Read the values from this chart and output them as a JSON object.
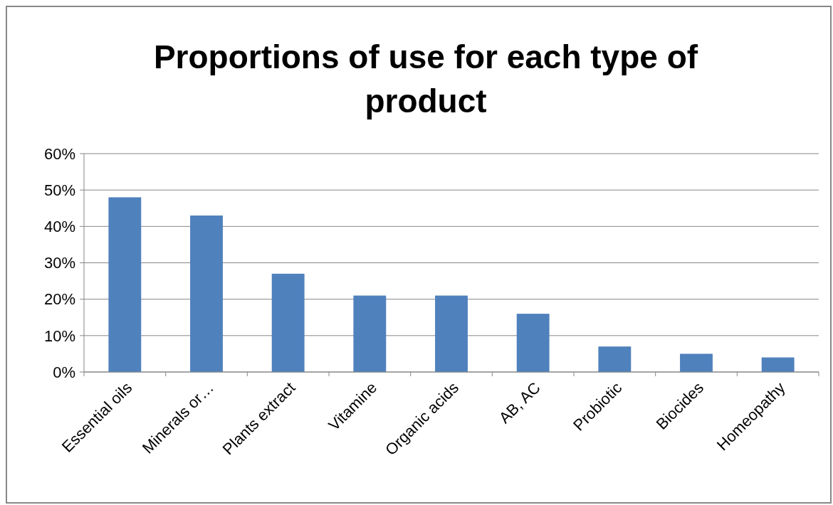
{
  "chart_data": {
    "type": "bar",
    "title": "Proportions of use for each type of product",
    "categories": [
      "Essential oils",
      "Minerals or…",
      "Plants extract",
      "Vitamine",
      "Organic acids",
      "AB, AC",
      "Probiotic",
      "Biocides",
      "Homeopathy"
    ],
    "values": [
      48,
      43,
      27,
      21,
      21,
      16,
      7,
      5,
      4
    ],
    "color": "#4f81bd",
    "ylim": [
      0,
      60
    ],
    "yticks": [
      {
        "value": 0,
        "label": "0%"
      },
      {
        "value": 10,
        "label": "10%"
      },
      {
        "value": 20,
        "label": "20%"
      },
      {
        "value": 30,
        "label": "30%"
      },
      {
        "value": 40,
        "label": "40%"
      },
      {
        "value": 50,
        "label": "50%"
      },
      {
        "value": 60,
        "label": "60%"
      }
    ],
    "grid": "y"
  }
}
